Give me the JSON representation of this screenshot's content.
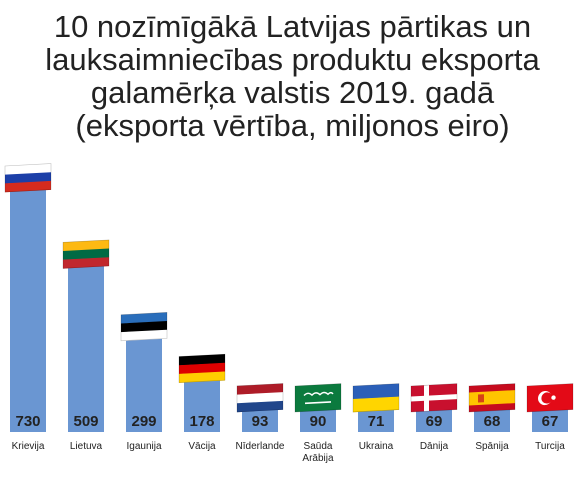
{
  "title_lines": [
    "10 nozīmīgākā Latvijas pārtikas un",
    "lauksaimniecības produktu eksporta",
    "galamērķa valstis 2019. gadā",
    "(eksporta vērtība, miljonos eiro)"
  ],
  "chart_data": {
    "type": "bar",
    "title": "10 nozīmīgākā Latvijas pārtikas un lauksaimniecības produktu eksporta galamērķa valstis 2019. gadā (eksporta vērtība, miljonos eiro)",
    "categories": [
      "Krievija",
      "Lietuva",
      "Igaunija",
      "Vācija",
      "Nīderlande",
      "Saūda Arābija",
      "Ukraina",
      "Dānija",
      "Spānija",
      "Turcija"
    ],
    "category_lines": [
      [
        "Krievija"
      ],
      [
        "Lietuva"
      ],
      [
        "Igaunija"
      ],
      [
        "Vācija"
      ],
      [
        "Nīderlande"
      ],
      [
        "Saūda",
        "Arābija"
      ],
      [
        "Ukraina"
      ],
      [
        "Dānija"
      ],
      [
        "Spānija"
      ],
      [
        "Turcija"
      ]
    ],
    "values": [
      730,
      509,
      299,
      178,
      93,
      90,
      71,
      69,
      68,
      67
    ],
    "value_labels": [
      "730",
      "509",
      "299",
      "178",
      "93",
      "90",
      "71",
      "69",
      "68",
      "67"
    ],
    "flag_icons": [
      "flag-russia-icon",
      "flag-lithuania-icon",
      "flag-estonia-icon",
      "flag-germany-icon",
      "flag-netherlands-icon",
      "flag-saudi-arabia-icon",
      "flag-ukraine-icon",
      "flag-denmark-icon",
      "flag-spain-icon",
      "flag-turkey-icon"
    ],
    "bar_color": "#6a96d2",
    "xlabel": "",
    "ylabel": "",
    "ylim": [
      0,
      730
    ],
    "grid": false,
    "legend": "none"
  }
}
